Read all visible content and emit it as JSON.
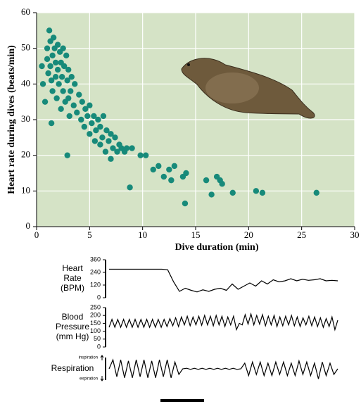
{
  "chart_data": [
    {
      "type": "scatter",
      "xlabel": "Dive duration (min)",
      "ylabel": "Heart rate during dives (beats/min)",
      "color": "#178a7a",
      "background": "#d5e3c6",
      "grid": true,
      "xlim": [
        0,
        30
      ],
      "ylim": [
        0,
        60
      ],
      "xticks": [
        0,
        5,
        10,
        15,
        20,
        25,
        30
      ],
      "yticks": [
        0,
        10,
        20,
        30,
        40,
        50,
        60
      ],
      "x": [
        0.5,
        0.6,
        0.8,
        1,
        1,
        1.1,
        1.2,
        1.3,
        1.3,
        1.4,
        1.5,
        1.5,
        1.6,
        1.7,
        1.8,
        1.8,
        1.9,
        2,
        2,
        2.1,
        2.2,
        2.3,
        2.3,
        2.4,
        2.5,
        2.5,
        2.6,
        2.7,
        2.8,
        2.9,
        3,
        3,
        3.1,
        3.2,
        3.3,
        3.5,
        3.6,
        3.8,
        4,
        4.2,
        4.3,
        4.5,
        4.6,
        4.8,
        5,
        5,
        5.2,
        5.4,
        5.5,
        5.6,
        5.8,
        6,
        6,
        6.2,
        6.3,
        6.5,
        6.6,
        6.8,
        7,
        7,
        7.2,
        7.4,
        7.6,
        7.8,
        8,
        8.3,
        8.5,
        8.8,
        9,
        9.8,
        10.3,
        1.4,
        2.9,
        11,
        11.5,
        12,
        12.5,
        12.7,
        13,
        13.8,
        14.1,
        14,
        16,
        16.5,
        17,
        17.3,
        17.5,
        18.5,
        20.7,
        21.3,
        26.4
      ],
      "values": [
        45,
        40,
        35,
        50,
        47,
        43,
        55,
        52,
        45,
        41,
        48,
        38,
        53,
        50,
        46,
        42,
        36,
        51,
        44,
        40,
        49,
        46,
        33,
        42,
        50,
        38,
        45,
        35,
        48,
        41,
        44,
        36,
        31,
        38,
        42,
        34,
        40,
        32,
        37,
        30,
        35,
        28,
        33,
        31,
        26,
        34,
        29,
        31,
        24,
        27,
        30,
        23,
        28,
        25,
        31,
        21,
        27,
        24,
        19,
        26,
        22,
        25,
        21,
        23,
        22,
        21,
        22,
        11,
        22,
        20,
        20,
        29,
        20,
        16,
        17,
        14,
        16,
        13,
        17,
        14,
        15,
        6.5,
        13,
        9,
        14,
        13,
        12,
        9.5,
        10,
        9.5,
        9.5
      ]
    },
    {
      "type": "line",
      "ylabel": [
        "Heart",
        "Rate",
        "(BPM)"
      ],
      "color": "#000",
      "ylim": [
        0,
        360
      ],
      "yticks": [
        0,
        120,
        240,
        360
      ],
      "values": [
        270,
        270,
        270,
        270,
        270,
        270,
        270,
        270,
        270,
        270,
        265,
        150,
        60,
        90,
        70,
        55,
        75,
        60,
        80,
        90,
        70,
        130,
        80,
        110,
        140,
        110,
        160,
        130,
        170,
        150,
        160,
        180,
        160,
        175,
        165,
        170,
        180,
        160,
        165,
        160
      ]
    },
    {
      "type": "line",
      "ylabel": [
        "Blood",
        "Pressure",
        "(mm Hg)"
      ],
      "color": "#000",
      "ylim": [
        0,
        250
      ],
      "yticks": [
        0,
        50,
        100,
        150,
        200,
        250
      ],
      "values": [
        125,
        175,
        125,
        175,
        125,
        175,
        125,
        175,
        125,
        175,
        125,
        175,
        125,
        175,
        125,
        175,
        125,
        175,
        125,
        175,
        130,
        180,
        135,
        185,
        130,
        190,
        140,
        195,
        135,
        190,
        140,
        195,
        138,
        200,
        140,
        195,
        135,
        200,
        140,
        195,
        130,
        190,
        140,
        195,
        110,
        150,
        140,
        205,
        145,
        210,
        140,
        200,
        145,
        205,
        135,
        195,
        140,
        200,
        130,
        190,
        135,
        195,
        140,
        200,
        135,
        190,
        130,
        185,
        140,
        195,
        135,
        190,
        130,
        185,
        125,
        180,
        130,
        190,
        110,
        170
      ]
    },
    {
      "type": "line",
      "ylabel": [
        "Respiration"
      ],
      "annotations": [
        "inspiration",
        "expiration"
      ],
      "color": "#000",
      "ylim": [
        -1,
        1
      ],
      "values": [
        0,
        0.8,
        -0.7,
        0.8,
        -0.8,
        0.7,
        -0.8,
        0.8,
        -0.7,
        0.8,
        -0.8,
        0.7,
        -0.8,
        0.8,
        -0.7,
        0.8,
        -0.8,
        0.6,
        -0.5,
        0,
        0.05,
        -0.05,
        0.05,
        -0.05,
        0.05,
        -0.05,
        0.05,
        -0.05,
        0.05,
        -0.05,
        0.05,
        -0.05,
        0.05,
        -0.05,
        0,
        0.5,
        -0.6,
        0.6,
        -0.5,
        0.6,
        -0.6,
        0.5,
        -0.6,
        0.6,
        -0.5,
        0.6,
        -0.6,
        0.5,
        -0.6,
        0.7,
        -0.5,
        0.6,
        -0.6,
        0.5,
        -0.9,
        0.6,
        -0.6,
        0.5,
        -0.5,
        0
      ]
    }
  ]
}
